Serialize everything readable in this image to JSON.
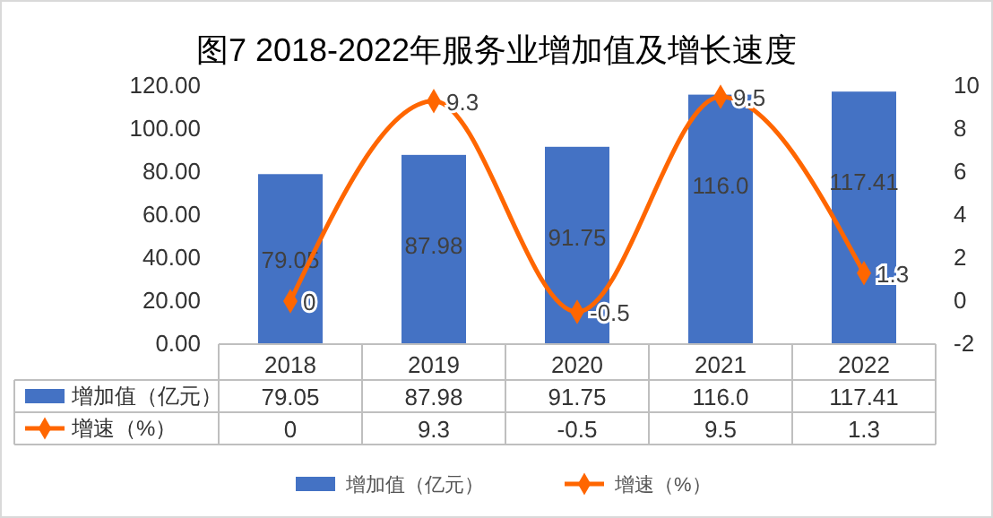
{
  "chart_data": {
    "type": "bar",
    "title": "图7  2018-2022年服务业增加值及增长速度",
    "categories": [
      "2018",
      "2019",
      "2020",
      "2021",
      "2022"
    ],
    "series": [
      {
        "name": "增加值（亿元）",
        "color": "#4472c4",
        "values": [
          79.05,
          87.98,
          91.75,
          116.0,
          117.41
        ],
        "value_labels": [
          "79.05",
          "87.98",
          "91.75",
          "116.0",
          "117.41"
        ]
      },
      {
        "name": "增速（%）",
        "type": "line",
        "axis": "y2",
        "color": "#ff6600",
        "marker": "diamond",
        "values": [
          0,
          9.3,
          -0.5,
          9.5,
          1.3
        ],
        "value_labels": [
          "0",
          "9.3",
          "-0.5",
          "9.5",
          "1.3"
        ]
      }
    ],
    "ylim": [
      0,
      120
    ],
    "yticks": [
      {
        "value": 0,
        "label": "0.00"
      },
      {
        "value": 20,
        "label": "20.00"
      },
      {
        "value": 40,
        "label": "40.00"
      },
      {
        "value": 60,
        "label": "60.00"
      },
      {
        "value": 80,
        "label": "80.00"
      },
      {
        "value": 100,
        "label": "100.00"
      },
      {
        "value": 120,
        "label": "120.00"
      }
    ],
    "y2lim": [
      -2,
      10
    ],
    "y2ticks": [
      -2,
      0,
      2,
      4,
      6,
      8,
      10
    ],
    "grid": false,
    "legend": "bottom"
  }
}
